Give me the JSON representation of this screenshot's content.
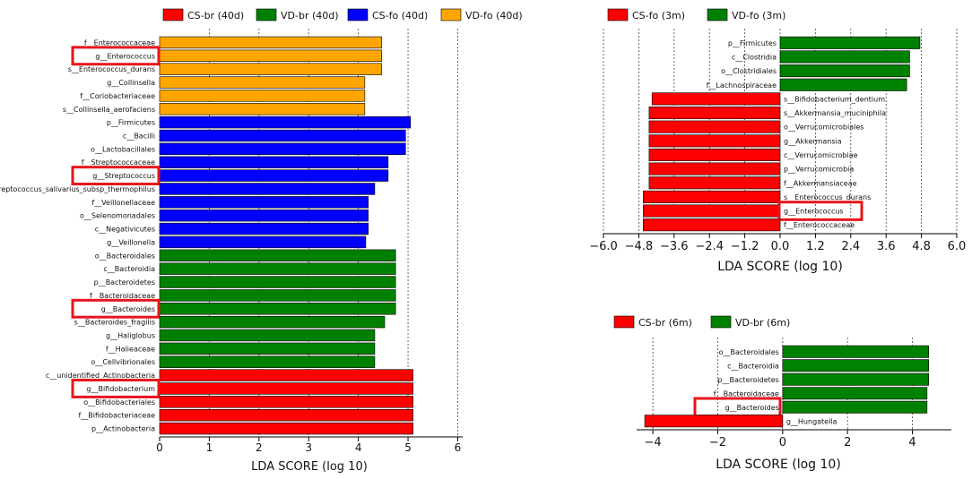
{
  "colors": {
    "red": "#ff0000",
    "green": "#008000",
    "blue": "#0000ff",
    "orange": "#ffa500",
    "highlight": "#e8141b"
  },
  "chart_data": [
    {
      "type": "bar",
      "orientation": "horizontal",
      "xlabel": "LDA SCORE (log 10)",
      "xlim": [
        0,
        6.1
      ],
      "xticks": [
        "0",
        "1",
        "2",
        "3",
        "4",
        "5",
        "6"
      ],
      "legend": [
        {
          "name": "CS-br (40d)",
          "color": "#ff0000"
        },
        {
          "name": "VD-br (40d)",
          "color": "#008000"
        },
        {
          "name": "CS-fo (40d)",
          "color": "#0000ff"
        },
        {
          "name": "VD-fo (40d)",
          "color": "#ffa500"
        }
      ],
      "bars": [
        {
          "label": "f__Enterococcaceae",
          "value": 4.47,
          "group": "VD-fo (40d)"
        },
        {
          "label": "g__Enterococcus",
          "value": 4.47,
          "group": "VD-fo (40d)",
          "highlight": true
        },
        {
          "label": "s__Enterococcus_durans",
          "value": 4.47,
          "group": "VD-fo (40d)"
        },
        {
          "label": "g__Collinsella",
          "value": 4.13,
          "group": "VD-fo (40d)"
        },
        {
          "label": "f__Coriobacteriaceae",
          "value": 4.13,
          "group": "VD-fo (40d)"
        },
        {
          "label": "s__Collinsella_aerofaciens",
          "value": 4.13,
          "group": "VD-fo (40d)"
        },
        {
          "label": "p__Firmicutes",
          "value": 5.05,
          "group": "CS-fo (40d)"
        },
        {
          "label": "c__Bacilli",
          "value": 4.95,
          "group": "CS-fo (40d)"
        },
        {
          "label": "o__Lactobacillales",
          "value": 4.95,
          "group": "CS-fo (40d)"
        },
        {
          "label": "f__Streptococcaceae",
          "value": 4.6,
          "group": "CS-fo (40d)"
        },
        {
          "label": "g__Streptococcus",
          "value": 4.6,
          "group": "CS-fo (40d)",
          "highlight": true
        },
        {
          "label": "s__Streptococcus_salivarius_subsp_thermophilus",
          "value": 4.33,
          "group": "CS-fo (40d)"
        },
        {
          "label": "f__Veillonellaceae",
          "value": 4.2,
          "group": "CS-fo (40d)"
        },
        {
          "label": "o__Selenomonadales",
          "value": 4.2,
          "group": "CS-fo (40d)"
        },
        {
          "label": "c__Negativicutes",
          "value": 4.2,
          "group": "CS-fo (40d)"
        },
        {
          "label": "g__Veillonella",
          "value": 4.15,
          "group": "CS-fo (40d)"
        },
        {
          "label": "o__Bacteroidales",
          "value": 4.75,
          "group": "VD-br (40d)"
        },
        {
          "label": "c__Bacteroidia",
          "value": 4.75,
          "group": "VD-br (40d)"
        },
        {
          "label": "p__Bacteroidetes",
          "value": 4.75,
          "group": "VD-br (40d)"
        },
        {
          "label": "f__Bacteroidaceae",
          "value": 4.75,
          "group": "VD-br (40d)"
        },
        {
          "label": "g__Bacteroides",
          "value": 4.75,
          "group": "VD-br (40d)",
          "highlight": true
        },
        {
          "label": "s__Bacteroides_fragilis",
          "value": 4.53,
          "group": "VD-br (40d)"
        },
        {
          "label": "g__Haliglobus",
          "value": 4.33,
          "group": "VD-br (40d)"
        },
        {
          "label": "f__Halieaceae",
          "value": 4.33,
          "group": "VD-br (40d)"
        },
        {
          "label": "o__Cellvibrionales",
          "value": 4.33,
          "group": "VD-br (40d)"
        },
        {
          "label": "c__unidentified_Actinobacteria",
          "value": 5.1,
          "group": "CS-br (40d)"
        },
        {
          "label": "g__Bifidobacterium",
          "value": 5.1,
          "group": "CS-br (40d)",
          "highlight": true
        },
        {
          "label": "o__Bifidobacteriales",
          "value": 5.1,
          "group": "CS-br (40d)"
        },
        {
          "label": "f__Bifidobacteriaceae",
          "value": 5.1,
          "group": "CS-br (40d)"
        },
        {
          "label": "p__Actinobacteria",
          "value": 5.1,
          "group": "CS-br (40d)"
        }
      ]
    },
    {
      "type": "bar",
      "orientation": "horizontal",
      "xlabel": "LDA SCORE (log 10)",
      "xlim": [
        -6.0,
        6.0
      ],
      "xticks": [
        "−6.0",
        "−4.8",
        "−3.6",
        "−2.4",
        "−1.2",
        "0.0",
        "1.2",
        "2.4",
        "3.6",
        "4.8",
        "6.0"
      ],
      "legend": [
        {
          "name": "CS-fo (3m)",
          "color": "#ff0000"
        },
        {
          "name": "VD-fo (3m)",
          "color": "#008000"
        }
      ],
      "bars": [
        {
          "label": "p__Firmicutes",
          "value": 4.75,
          "group": "VD-fo (3m)"
        },
        {
          "label": "c__Clostridia",
          "value": 4.4,
          "group": "VD-fo (3m)"
        },
        {
          "label": "o__Clostridiales",
          "value": 4.4,
          "group": "VD-fo (3m)"
        },
        {
          "label": "f__Lachnospiraceae",
          "value": 4.3,
          "group": "VD-fo (3m)"
        },
        {
          "label": "s__Bifidobacterium_dentium",
          "value": -4.35,
          "group": "CS-fo (3m)"
        },
        {
          "label": "s__Akkermansia_muciniphila",
          "value": -4.45,
          "group": "CS-fo (3m)"
        },
        {
          "label": "o__Verrucomicrobiales",
          "value": -4.45,
          "group": "CS-fo (3m)"
        },
        {
          "label": "g__Akkermansia",
          "value": -4.45,
          "group": "CS-fo (3m)"
        },
        {
          "label": "c__Verrucomicrobiae",
          "value": -4.45,
          "group": "CS-fo (3m)"
        },
        {
          "label": "p__Verrucomicrobia",
          "value": -4.45,
          "group": "CS-fo (3m)"
        },
        {
          "label": "f__Akkermansiaceae",
          "value": -4.45,
          "group": "CS-fo (3m)"
        },
        {
          "label": "s__Enterococcus_durans",
          "value": -4.65,
          "group": "CS-fo (3m)"
        },
        {
          "label": "g__Enterococcus",
          "value": -4.65,
          "group": "CS-fo (3m)",
          "highlight": true
        },
        {
          "label": "f__Enterococcaceae",
          "value": -4.65,
          "group": "CS-fo (3m)"
        }
      ]
    },
    {
      "type": "bar",
      "orientation": "horizontal",
      "xlabel": "LDA SCORE (log 10)",
      "xlim": [
        -4.5,
        5.2
      ],
      "xticks": [
        "−4",
        "−2",
        "0",
        "2",
        "4"
      ],
      "tick_values": [
        -4,
        -2,
        0,
        2,
        4
      ],
      "legend": [
        {
          "name": "CS-br (6m)",
          "color": "#ff0000"
        },
        {
          "name": "VD-br (6m)",
          "color": "#008000"
        }
      ],
      "bars": [
        {
          "label": "o__Bacteroidales",
          "value": 4.5,
          "group": "VD-br (6m)"
        },
        {
          "label": "c__Bacteroidia",
          "value": 4.5,
          "group": "VD-br (6m)"
        },
        {
          "label": "p__Bacteroidetes",
          "value": 4.5,
          "group": "VD-br (6m)"
        },
        {
          "label": "f__Bacteroidaceae",
          "value": 4.45,
          "group": "VD-br (6m)"
        },
        {
          "label": "g__Bacteroides",
          "value": 4.45,
          "group": "VD-br (6m)",
          "highlight": true
        },
        {
          "label": "g__Hungatella",
          "value": -4.25,
          "group": "CS-br (6m)"
        }
      ]
    }
  ]
}
